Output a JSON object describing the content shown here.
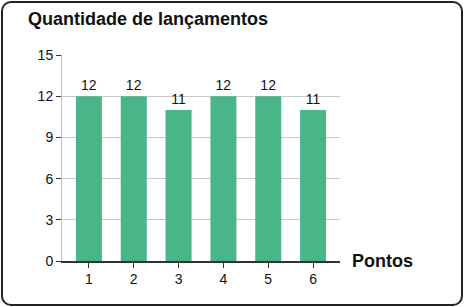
{
  "chart_data": {
    "type": "bar",
    "title": "Quantidade de lançamentos",
    "xlabel": "Pontos",
    "categories": [
      "1",
      "2",
      "3",
      "4",
      "5",
      "6"
    ],
    "values": [
      12,
      12,
      11,
      12,
      12,
      11
    ],
    "color": "#4bb58a",
    "ylim": [
      0,
      15
    ],
    "yticks": [
      0,
      3,
      6,
      9,
      12,
      15
    ],
    "grid": true,
    "data_labels": true
  }
}
